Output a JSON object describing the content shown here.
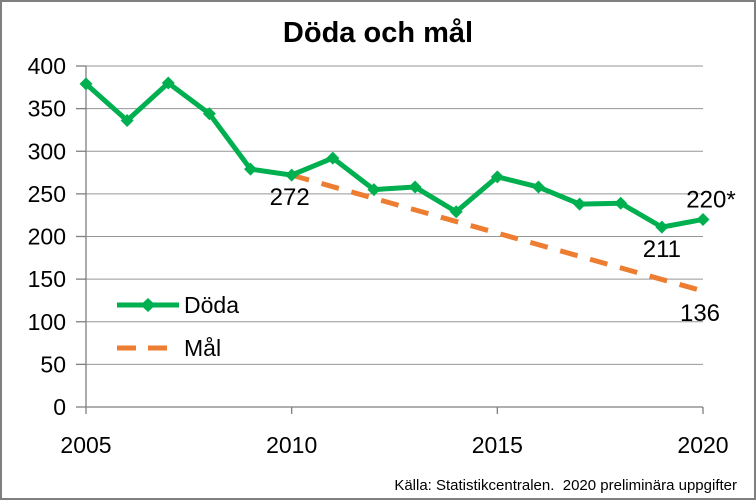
{
  "chart_data": {
    "type": "line",
    "title": "Döda och mål",
    "xlabel": "",
    "ylabel": "",
    "x": [
      2005,
      2006,
      2007,
      2008,
      2009,
      2010,
      2011,
      2012,
      2013,
      2014,
      2015,
      2016,
      2017,
      2018,
      2019,
      2020
    ],
    "series": [
      {
        "name": "Döda",
        "color": "#00B050",
        "marker": "diamond",
        "style": "solid",
        "values": [
          379,
          336,
          380,
          344,
          279,
          272,
          292,
          255,
          258,
          229,
          270,
          258,
          238,
          239,
          211,
          220
        ]
      },
      {
        "name": "Mål",
        "color": "#ED7D31",
        "marker": "none",
        "style": "dashed",
        "x": [
          2010,
          2020
        ],
        "values": [
          272,
          136
        ]
      }
    ],
    "ylim": [
      0,
      400
    ],
    "ytick_step": 50,
    "xticks": [
      2005,
      2010,
      2015,
      2020
    ],
    "grid": "horizontal",
    "legend_position": "inside-left",
    "annotations": [
      {
        "text": "272",
        "year": 2010,
        "value": 272,
        "placement": "below",
        "dx": -2
      },
      {
        "text": "211",
        "year": 2019,
        "value": 211,
        "placement": "below",
        "dx": 0
      },
      {
        "text": "220*",
        "year": 2020,
        "value": 220,
        "placement": "above",
        "dx": 8
      },
      {
        "text": "136",
        "year": 2020,
        "value": 136,
        "placement": "below",
        "dx": -3
      }
    ],
    "source": "Källa: Statistikcentralen.  2020 preliminära uppgifter",
    "colors": {
      "grid": "#969696",
      "axis": "#7f7f7f",
      "text": "#000000",
      "border": "#7f7f7f"
    }
  }
}
